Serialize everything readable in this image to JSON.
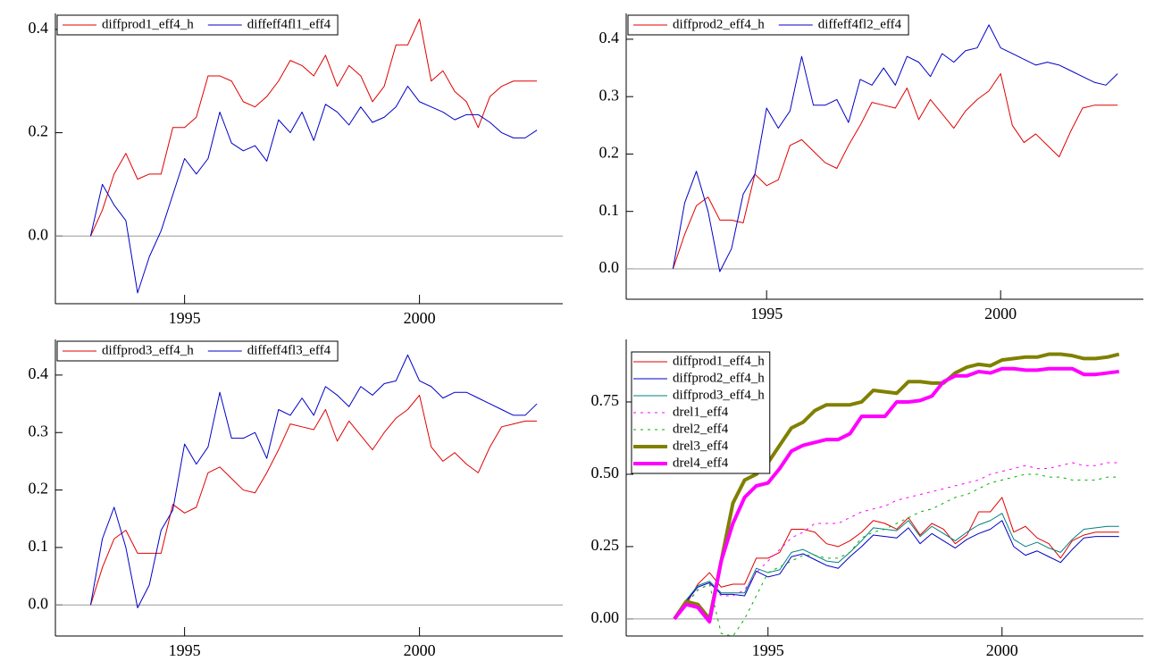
{
  "chart_data": [
    {
      "type": "line",
      "legend": "upper left",
      "legend_layout": "row",
      "zero_line": true,
      "x": [
        1993,
        1993.25,
        1993.5,
        1993.75,
        1994,
        1994.25,
        1994.5,
        1994.75,
        1995,
        1995.25,
        1995.5,
        1995.75,
        1996,
        1996.25,
        1996.5,
        1996.75,
        1997,
        1997.25,
        1997.5,
        1997.75,
        1998,
        1998.25,
        1998.5,
        1998.75,
        1999,
        1999.25,
        1999.5,
        1999.75,
        2000,
        2000.25,
        2000.5,
        2000.75,
        2001,
        2001.25,
        2001.5,
        2001.75,
        2002,
        2002.25,
        2002.5
      ],
      "xlim": [
        1992.25,
        2003.05
      ],
      "xticks": [
        1995,
        2000
      ],
      "ylim": [
        -0.131,
        0.431
      ],
      "yticks": [
        {
          "value": 0,
          "label": "0.0"
        },
        0.2,
        0.4
      ],
      "series": [
        {
          "name": "diffprod1_eff4_h",
          "color": "#e00000",
          "width": 1,
          "dash": "none",
          "values": [
            0,
            0.05,
            0.12,
            0.16,
            0.11,
            0.12,
            0.12,
            0.21,
            0.21,
            0.23,
            0.31,
            0.31,
            0.3,
            0.26,
            0.25,
            0.27,
            0.3,
            0.34,
            0.33,
            0.31,
            0.35,
            0.29,
            0.33,
            0.31,
            0.26,
            0.29,
            0.37,
            0.37,
            0.42,
            0.3,
            0.32,
            0.28,
            0.26,
            0.21,
            0.27,
            0.29,
            0.3,
            0.3,
            0.3
          ]
        },
        {
          "name": "diffeff4fl1_eff4",
          "color": "#0000c8",
          "width": 1,
          "dash": "none",
          "values": [
            0,
            0.1,
            0.06,
            0.03,
            -0.11,
            -0.04,
            0.01,
            0.08,
            0.15,
            0.12,
            0.15,
            0.24,
            0.18,
            0.165,
            0.175,
            0.145,
            0.225,
            0.2,
            0.24,
            0.185,
            0.255,
            0.24,
            0.215,
            0.25,
            0.22,
            0.23,
            0.25,
            0.29,
            0.26,
            0.25,
            0.24,
            0.225,
            0.235,
            0.235,
            0.22,
            0.2,
            0.19,
            0.19,
            0.205
          ]
        }
      ]
    },
    {
      "type": "line",
      "legend": "upper left",
      "legend_layout": "row",
      "zero_line": true,
      "x": [
        1993,
        1993.25,
        1993.5,
        1993.75,
        1994,
        1994.25,
        1994.5,
        1994.75,
        1995,
        1995.25,
        1995.5,
        1995.75,
        1996,
        1996.25,
        1996.5,
        1996.75,
        1997,
        1997.25,
        1997.5,
        1997.75,
        1998,
        1998.25,
        1998.5,
        1998.75,
        1999,
        1999.25,
        1999.5,
        1999.75,
        2000,
        2000.25,
        2000.5,
        2000.75,
        2001,
        2001.25,
        2001.5,
        2001.75,
        2002,
        2002.25,
        2002.5
      ],
      "xlim": [
        1992.0,
        2003.05
      ],
      "xticks": [
        1995,
        2000
      ],
      "ylim": [
        -0.053,
        0.445
      ],
      "yticks": [
        {
          "value": 0,
          "label": "0.0"
        },
        0.1,
        0.2,
        0.3,
        0.4
      ],
      "series": [
        {
          "name": "diffprod2_eff4_h",
          "color": "#e00000",
          "width": 1,
          "dash": "none",
          "values": [
            0,
            0.06,
            0.11,
            0.125,
            0.085,
            0.085,
            0.08,
            0.165,
            0.145,
            0.155,
            0.215,
            0.225,
            0.205,
            0.185,
            0.175,
            0.215,
            0.25,
            0.29,
            0.285,
            0.28,
            0.315,
            0.26,
            0.295,
            0.27,
            0.245,
            0.275,
            0.295,
            0.31,
            0.34,
            0.25,
            0.22,
            0.235,
            0.215,
            0.195,
            0.24,
            0.28,
            0.285,
            0.285,
            0.285
          ]
        },
        {
          "name": "diffeff4fl2_eff4",
          "color": "#0000c8",
          "width": 1,
          "dash": "none",
          "values": [
            0,
            0.115,
            0.17,
            0.1,
            -0.005,
            0.035,
            0.13,
            0.165,
            0.28,
            0.245,
            0.275,
            0.37,
            0.285,
            0.285,
            0.295,
            0.255,
            0.33,
            0.32,
            0.35,
            0.32,
            0.37,
            0.36,
            0.335,
            0.375,
            0.36,
            0.38,
            0.385,
            0.425,
            0.385,
            0.375,
            0.365,
            0.355,
            0.36,
            0.355,
            0.345,
            0.335,
            0.325,
            0.32,
            0.34
          ]
        }
      ]
    },
    {
      "type": "line",
      "legend": "upper left",
      "legend_layout": "row",
      "zero_line": true,
      "x": [
        1993,
        1993.25,
        1993.5,
        1993.75,
        1994,
        1994.25,
        1994.5,
        1994.75,
        1995,
        1995.25,
        1995.5,
        1995.75,
        1996,
        1996.25,
        1996.5,
        1996.75,
        1997,
        1997.25,
        1997.5,
        1997.75,
        1998,
        1998.25,
        1998.5,
        1998.75,
        1999,
        1999.25,
        1999.5,
        1999.75,
        2000,
        2000.25,
        2000.5,
        2000.75,
        2001,
        2001.25,
        2001.5,
        2001.75,
        2002,
        2002.25,
        2002.5
      ],
      "xlim": [
        1992.25,
        2003.05
      ],
      "xticks": [
        1995,
        2000
      ],
      "ylim": [
        -0.054,
        0.462
      ],
      "yticks": [
        {
          "value": 0,
          "label": "0.0"
        },
        0.1,
        0.2,
        0.3,
        0.4
      ],
      "series": [
        {
          "name": "diffprod3_eff4_h",
          "color": "#e00000",
          "width": 1,
          "dash": "none",
          "values": [
            0,
            0.065,
            0.115,
            0.13,
            0.09,
            0.09,
            0.09,
            0.175,
            0.16,
            0.17,
            0.23,
            0.24,
            0.22,
            0.2,
            0.195,
            0.23,
            0.27,
            0.315,
            0.31,
            0.305,
            0.34,
            0.285,
            0.32,
            0.295,
            0.27,
            0.3,
            0.325,
            0.34,
            0.365,
            0.275,
            0.25,
            0.265,
            0.245,
            0.23,
            0.275,
            0.31,
            0.315,
            0.32,
            0.32
          ]
        },
        {
          "name": "diffeff4fl3_eff4",
          "color": "#0000c8",
          "width": 1,
          "dash": "none",
          "values": [
            0,
            0.115,
            0.17,
            0.1,
            -0.005,
            0.035,
            0.13,
            0.165,
            0.28,
            0.245,
            0.275,
            0.37,
            0.29,
            0.29,
            0.3,
            0.255,
            0.34,
            0.33,
            0.36,
            0.33,
            0.38,
            0.365,
            0.345,
            0.38,
            0.365,
            0.385,
            0.39,
            0.435,
            0.39,
            0.38,
            0.36,
            0.37,
            0.37,
            0.36,
            0.35,
            0.34,
            0.33,
            0.33,
            0.35
          ]
        }
      ]
    },
    {
      "type": "line",
      "legend": "upper left",
      "legend_layout": "column",
      "zero_line": true,
      "x": [
        1993,
        1993.25,
        1993.5,
        1993.75,
        1994,
        1994.25,
        1994.5,
        1994.75,
        1995,
        1995.25,
        1995.5,
        1995.75,
        1996,
        1996.25,
        1996.5,
        1996.75,
        1997,
        1997.25,
        1997.5,
        1997.75,
        1998,
        1998.25,
        1998.5,
        1998.75,
        1999,
        1999.25,
        1999.5,
        1999.75,
        2000,
        2000.25,
        2000.5,
        2000.75,
        2001,
        2001.25,
        2001.5,
        2001.75,
        2002,
        2002.25,
        2002.5
      ],
      "xlim": [
        1991.97,
        2003.02
      ],
      "xticks": [
        1995,
        2000
      ],
      "ylim": [
        -0.059,
        0.966
      ],
      "yticks": [
        {
          "value": 0,
          "label": "0.00"
        },
        {
          "value": 0.25,
          "label": "0.25"
        },
        {
          "value": 0.5,
          "label": "0.50"
        },
        {
          "value": 0.75,
          "label": "0.75"
        }
      ],
      "series": [
        {
          "name": "diffprod1_eff4_h",
          "color": "#e00000",
          "width": 1,
          "dash": "none",
          "values": [
            0,
            0.05,
            0.12,
            0.16,
            0.11,
            0.12,
            0.12,
            0.21,
            0.21,
            0.23,
            0.31,
            0.31,
            0.3,
            0.26,
            0.25,
            0.27,
            0.3,
            0.34,
            0.33,
            0.31,
            0.35,
            0.29,
            0.33,
            0.31,
            0.26,
            0.29,
            0.37,
            0.37,
            0.42,
            0.3,
            0.32,
            0.28,
            0.26,
            0.21,
            0.27,
            0.29,
            0.3,
            0.3,
            0.3
          ]
        },
        {
          "name": "diffprod2_eff4_h",
          "color": "#0000c8",
          "width": 1,
          "dash": "none",
          "values": [
            0,
            0.06,
            0.11,
            0.125,
            0.085,
            0.085,
            0.08,
            0.165,
            0.145,
            0.155,
            0.215,
            0.225,
            0.205,
            0.185,
            0.175,
            0.215,
            0.25,
            0.29,
            0.285,
            0.28,
            0.315,
            0.26,
            0.295,
            0.27,
            0.245,
            0.275,
            0.295,
            0.31,
            0.34,
            0.25,
            0.22,
            0.235,
            0.215,
            0.195,
            0.24,
            0.28,
            0.285,
            0.285,
            0.285
          ]
        },
        {
          "name": "diffprod3_eff4_h",
          "color": "#008080",
          "width": 1,
          "dash": "none",
          "values": [
            0,
            0.065,
            0.115,
            0.13,
            0.09,
            0.09,
            0.09,
            0.175,
            0.16,
            0.17,
            0.23,
            0.24,
            0.22,
            0.2,
            0.195,
            0.23,
            0.27,
            0.315,
            0.31,
            0.305,
            0.34,
            0.285,
            0.32,
            0.295,
            0.27,
            0.3,
            0.325,
            0.34,
            0.365,
            0.275,
            0.25,
            0.265,
            0.245,
            0.23,
            0.275,
            0.31,
            0.315,
            0.32,
            0.32
          ]
        },
        {
          "name": "drel1_eff4",
          "color": "#ff00ff",
          "width": 1,
          "dash": "3 5",
          "values": [
            0,
            0.05,
            0.1,
            0.12,
            0.08,
            0.08,
            0.1,
            0.16,
            0.2,
            0.24,
            0.28,
            0.3,
            0.33,
            0.33,
            0.33,
            0.35,
            0.37,
            0.38,
            0.39,
            0.41,
            0.42,
            0.43,
            0.44,
            0.45,
            0.46,
            0.47,
            0.48,
            0.5,
            0.51,
            0.52,
            0.53,
            0.52,
            0.52,
            0.53,
            0.54,
            0.53,
            0.53,
            0.54,
            0.54
          ]
        },
        {
          "name": "drel2_eff4",
          "color": "#00b000",
          "width": 1,
          "dash": "3 5",
          "values": [
            0,
            0.05,
            0.1,
            0.12,
            -0.05,
            -0.06,
            0,
            0.08,
            0.16,
            0.18,
            0.2,
            0.22,
            0.22,
            0.21,
            0.21,
            0.23,
            0.28,
            0.3,
            0.31,
            0.33,
            0.35,
            0.37,
            0.38,
            0.4,
            0.42,
            0.43,
            0.45,
            0.47,
            0.48,
            0.49,
            0.5,
            0.5,
            0.49,
            0.49,
            0.48,
            0.48,
            0.48,
            0.49,
            0.49
          ]
        },
        {
          "name": "drel3_eff4",
          "color": "#808000",
          "width": 4,
          "dash": "none",
          "values": [
            0,
            0.06,
            0.05,
            0,
            0.2,
            0.4,
            0.48,
            0.5,
            0.54,
            0.6,
            0.66,
            0.68,
            0.72,
            0.74,
            0.74,
            0.74,
            0.75,
            0.79,
            0.785,
            0.78,
            0.82,
            0.82,
            0.815,
            0.815,
            0.85,
            0.87,
            0.88,
            0.875,
            0.895,
            0.9,
            0.905,
            0.905,
            0.915,
            0.915,
            0.91,
            0.9,
            0.9,
            0.905,
            0.915
          ]
        },
        {
          "name": "drel4_eff4",
          "color": "#ff00ff",
          "width": 4,
          "dash": "none",
          "values": [
            0,
            0.05,
            0.04,
            -0.01,
            0.2,
            0.33,
            0.42,
            0.46,
            0.47,
            0.52,
            0.58,
            0.6,
            0.61,
            0.62,
            0.62,
            0.64,
            0.7,
            0.7,
            0.7,
            0.75,
            0.75,
            0.755,
            0.77,
            0.82,
            0.84,
            0.84,
            0.855,
            0.85,
            0.865,
            0.865,
            0.86,
            0.86,
            0.865,
            0.865,
            0.865,
            0.845,
            0.845,
            0.85,
            0.855
          ]
        }
      ]
    }
  ]
}
